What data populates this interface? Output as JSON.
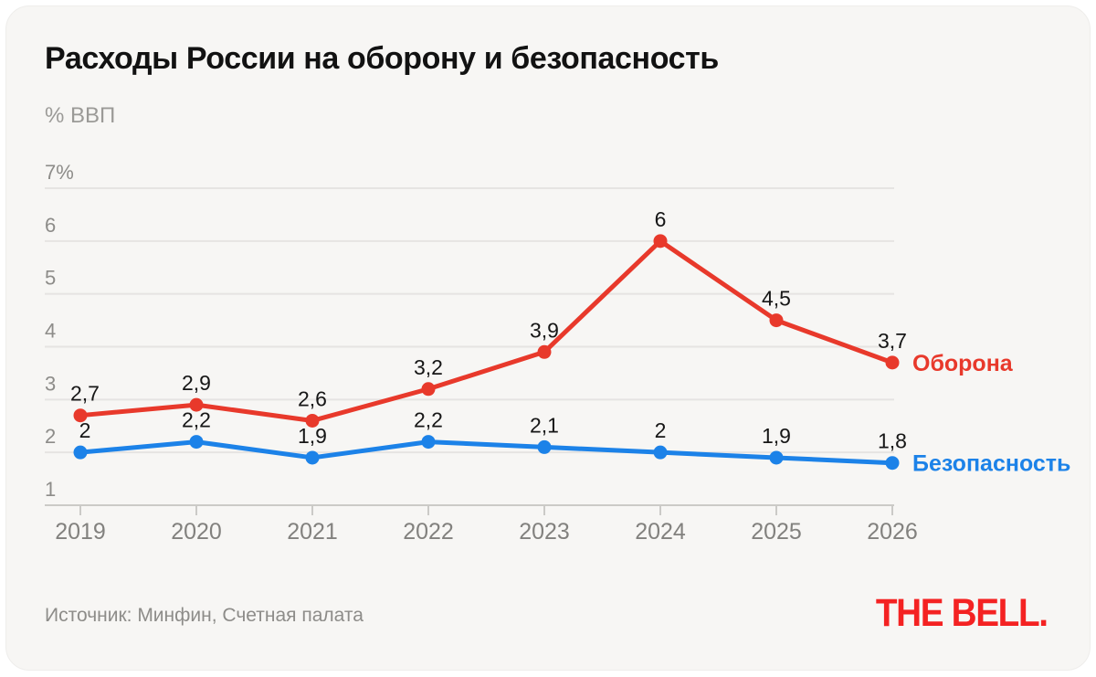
{
  "header": {
    "title": "Расходы России на оборону и безопасность",
    "subtitle": "% ВВП"
  },
  "footer": {
    "source": "Источник: Минфин, Счетная палата",
    "logo": "THE BELL."
  },
  "colors": {
    "defense_red": "#e8392b",
    "security_blue": "#1c82e8",
    "logo_red": "#f42222",
    "grid": "#e6e4e2",
    "axis": "#cbcac7",
    "ytick_label": "#8d8c89",
    "xtick_label": "#82817e",
    "data_label": "#161616",
    "card_bg": "#f7f6f4",
    "title": "#121212",
    "subtitle": "#9b9a97"
  },
  "chart_data": {
    "type": "line",
    "title": "Расходы России на оборону и безопасность",
    "ylabel": "% ВВП",
    "xlabel": "",
    "x": [
      "2019",
      "2020",
      "2021",
      "2022",
      "2023",
      "2024",
      "2025",
      "2026"
    ],
    "ylim": [
      1,
      7
    ],
    "grid": true,
    "yticks": [
      {
        "value": 7,
        "label": "7%"
      },
      {
        "value": 6,
        "label": "6"
      },
      {
        "value": 5,
        "label": "5"
      },
      {
        "value": 4,
        "label": "4"
      },
      {
        "value": 3,
        "label": "3"
      },
      {
        "value": 2,
        "label": "2"
      },
      {
        "value": 1,
        "label": "1"
      }
    ],
    "series": [
      {
        "name": "Оборона",
        "color": "#e8392b",
        "values": [
          2.7,
          2.9,
          2.6,
          3.2,
          3.9,
          6,
          4.5,
          3.7
        ],
        "value_labels": [
          "2,7",
          "2,9",
          "2,6",
          "3,2",
          "3,9",
          "6",
          "4,5",
          "3,7"
        ]
      },
      {
        "name": "Безопасность",
        "color": "#1c82e8",
        "values": [
          2,
          2.2,
          1.9,
          2.2,
          2.1,
          2,
          1.9,
          1.8
        ],
        "value_labels": [
          "2",
          "2,2",
          "1,9",
          "2,2",
          "2,1",
          "2",
          "1,9",
          "1,8"
        ]
      }
    ],
    "legend_position": "line-end",
    "source": "Источник: Минфин, Счетная палата"
  }
}
